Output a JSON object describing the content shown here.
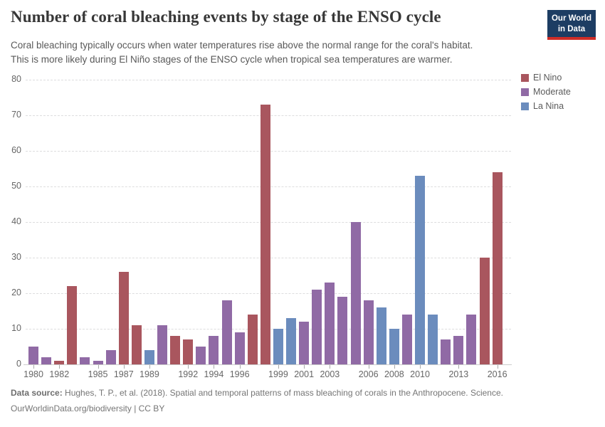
{
  "header": {
    "title": "Number of coral bleaching events by stage of the ENSO cycle",
    "subtitle_line1": "Coral bleaching typically occurs when water temperatures rise above the normal range for the coral's habitat.",
    "subtitle_line2": "This is more likely during El Niño stages of the ENSO cycle when tropical sea temperatures are warmer.",
    "logo": {
      "line1": "Our World",
      "line2": "in Data",
      "bg_color": "#1d3d63",
      "accent_color": "#cf2d27"
    }
  },
  "chart_data": {
    "type": "bar",
    "title": "Number of coral bleaching events by stage of the ENSO cycle",
    "xlabel": "",
    "ylabel": "",
    "ylim": [
      0,
      80
    ],
    "y_ticks": [
      0,
      10,
      20,
      30,
      40,
      50,
      60,
      70,
      80
    ],
    "x_tick_years": [
      1980,
      1982,
      1985,
      1987,
      1989,
      1992,
      1994,
      1996,
      1999,
      2001,
      2003,
      2006,
      2008,
      2010,
      2013,
      2016
    ],
    "grid": "horizontal-dashed",
    "legend_position": "right",
    "legend": [
      "El Nino",
      "Moderate",
      "La Nina"
    ],
    "series_colors": {
      "El Nino": "#a9565e",
      "Moderate": "#906aa5",
      "La Nina": "#6b8cbd"
    },
    "points": [
      {
        "year": 1980,
        "value": 5,
        "category": "Moderate"
      },
      {
        "year": 1981,
        "value": 2,
        "category": "Moderate"
      },
      {
        "year": 1982,
        "value": 1,
        "category": "El Nino"
      },
      {
        "year": 1983,
        "value": 22,
        "category": "El Nino"
      },
      {
        "year": 1984,
        "value": 2,
        "category": "Moderate"
      },
      {
        "year": 1985,
        "value": 1,
        "category": "Moderate"
      },
      {
        "year": 1986,
        "value": 4,
        "category": "Moderate"
      },
      {
        "year": 1987,
        "value": 26,
        "category": "El Nino"
      },
      {
        "year": 1988,
        "value": 11,
        "category": "El Nino"
      },
      {
        "year": 1989,
        "value": 4,
        "category": "La Nina"
      },
      {
        "year": 1990,
        "value": 11,
        "category": "Moderate"
      },
      {
        "year": 1991,
        "value": 8,
        "category": "El Nino"
      },
      {
        "year": 1992,
        "value": 7,
        "category": "El Nino"
      },
      {
        "year": 1993,
        "value": 5,
        "category": "Moderate"
      },
      {
        "year": 1994,
        "value": 8,
        "category": "Moderate"
      },
      {
        "year": 1995,
        "value": 18,
        "category": "Moderate"
      },
      {
        "year": 1996,
        "value": 9,
        "category": "Moderate"
      },
      {
        "year": 1997,
        "value": 14,
        "category": "El Nino"
      },
      {
        "year": 1998,
        "value": 73,
        "category": "El Nino"
      },
      {
        "year": 1999,
        "value": 10,
        "category": "La Nina"
      },
      {
        "year": 2000,
        "value": 13,
        "category": "La Nina"
      },
      {
        "year": 2001,
        "value": 12,
        "category": "Moderate"
      },
      {
        "year": 2002,
        "value": 21,
        "category": "Moderate"
      },
      {
        "year": 2003,
        "value": 23,
        "category": "Moderate"
      },
      {
        "year": 2004,
        "value": 19,
        "category": "Moderate"
      },
      {
        "year": 2005,
        "value": 40,
        "category": "Moderate"
      },
      {
        "year": 2006,
        "value": 18,
        "category": "Moderate"
      },
      {
        "year": 2007,
        "value": 16,
        "category": "La Nina"
      },
      {
        "year": 2008,
        "value": 10,
        "category": "La Nina"
      },
      {
        "year": 2009,
        "value": 14,
        "category": "Moderate"
      },
      {
        "year": 2010,
        "value": 53,
        "category": "La Nina"
      },
      {
        "year": 2011,
        "value": 14,
        "category": "La Nina"
      },
      {
        "year": 2012,
        "value": 7,
        "category": "Moderate"
      },
      {
        "year": 2013,
        "value": 8,
        "category": "Moderate"
      },
      {
        "year": 2014,
        "value": 14,
        "category": "Moderate"
      },
      {
        "year": 2015,
        "value": 30,
        "category": "El Nino"
      },
      {
        "year": 2016,
        "value": 54,
        "category": "El Nino"
      }
    ]
  },
  "footer": {
    "source_label": "Data source:",
    "source_text": " Hughes, T. P., et al. (2018). Spatial and temporal patterns of mass bleaching of corals in the Anthropocene. Science.",
    "license_link": "OurWorldinData.org/biodiversity",
    "license_suffix": " | CC BY"
  }
}
